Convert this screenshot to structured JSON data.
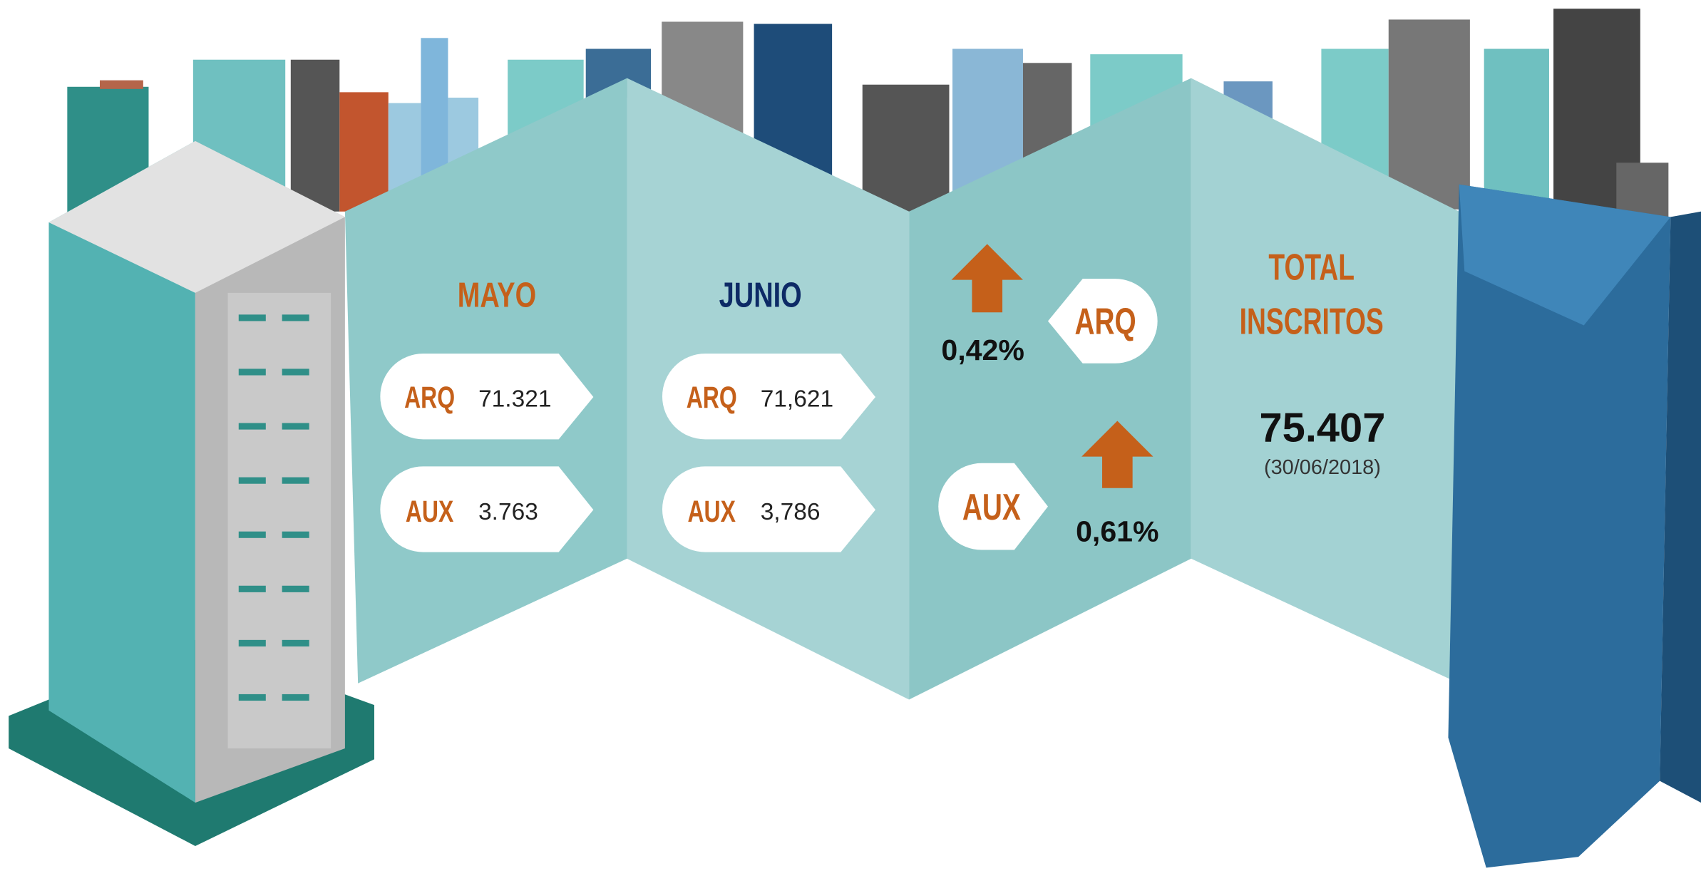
{
  "mayo": {
    "title": "MAYO",
    "rows": [
      {
        "label": "ARQ",
        "value": "71.321"
      },
      {
        "label": "AUX",
        "value": "3.763"
      }
    ]
  },
  "junio": {
    "title": "JUNIO",
    "rows": [
      {
        "label": "ARQ",
        "value": "71,621"
      },
      {
        "label": "AUX",
        "value": "3,786"
      }
    ]
  },
  "variation": {
    "rows": [
      {
        "label": "ARQ",
        "percent": "0,42%"
      },
      {
        "label": "AUX",
        "percent": "0,61%"
      }
    ]
  },
  "total": {
    "title_lines": [
      "TOTAL",
      "INSCRITOS"
    ],
    "value": "75.407",
    "date": "(30/06/2018)"
  }
}
